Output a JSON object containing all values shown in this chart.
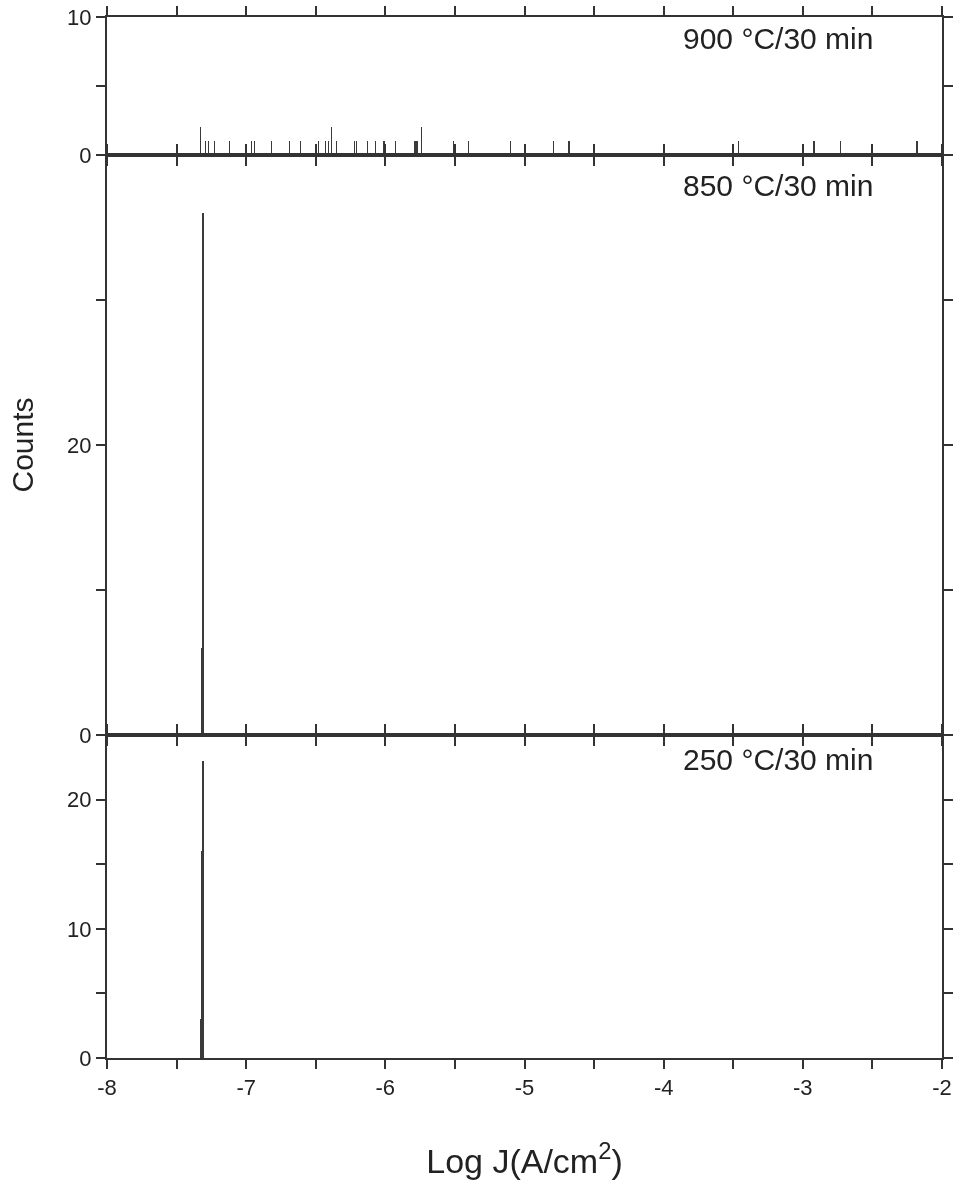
{
  "chart_data": [
    {
      "type": "bar",
      "annotations": [
        "900 °C/30 min"
      ],
      "color": "#3a3a3a",
      "tick_labels": "y",
      "x": [
        -7.325,
        -7.29,
        -7.27,
        -7.23,
        -7.12,
        -6.96,
        -6.94,
        -6.82,
        -6.69,
        -6.61,
        -6.48,
        -6.43,
        -6.41,
        -6.39,
        -6.35,
        -6.22,
        -6.21,
        -6.13,
        -6.07,
        -6.01,
        -5.93,
        -5.79,
        -5.78,
        -5.77,
        -5.74,
        -5.51,
        -5.4,
        -5.1,
        -4.79,
        -4.68,
        -3.46,
        -2.92,
        -2.73,
        -2.18
      ],
      "values": [
        2,
        1,
        1,
        1,
        1,
        1,
        1,
        1,
        1,
        1,
        1,
        1,
        1,
        2,
        1,
        1,
        1,
        1,
        1,
        1,
        1,
        1,
        1,
        1,
        2,
        1,
        1,
        1,
        1,
        1,
        1,
        1,
        1,
        1
      ],
      "xlim": [
        -8,
        -2
      ],
      "xticks": [
        -8,
        {
          "value": -7.5,
          "label": null
        },
        -7,
        {
          "value": -6.5,
          "label": null
        },
        -6,
        {
          "value": -5.5,
          "label": null
        },
        -5,
        {
          "value": -4.5,
          "label": null
        },
        -4,
        {
          "value": -3.5,
          "label": null
        },
        -3,
        {
          "value": -2.5,
          "label": null
        },
        -2
      ],
      "ylim": [
        0,
        10
      ],
      "yticks": [
        0,
        {
          "value": 5,
          "label": null
        },
        10
      ]
    },
    {
      "type": "bar",
      "annotations": [
        "850 °C/30 min"
      ],
      "ylabel": "Counts",
      "color": "#3a3a3a",
      "tick_labels": "y",
      "x": [
        -7.31,
        -7.318
      ],
      "values": [
        36,
        6
      ],
      "xlim": [
        -8,
        -2
      ],
      "xticks": [
        -8,
        {
          "value": -7.5,
          "label": null
        },
        -7,
        {
          "value": -6.5,
          "label": null
        },
        -6,
        {
          "value": -5.5,
          "label": null
        },
        -5,
        {
          "value": -4.5,
          "label": null
        },
        -4,
        {
          "value": -3.5,
          "label": null
        },
        -3,
        {
          "value": -2.5,
          "label": null
        },
        -2
      ],
      "ylim": [
        0,
        40
      ],
      "yticks": [
        0,
        {
          "value": 10,
          "label": null
        },
        20,
        {
          "value": 30,
          "label": null
        }
      ]
    },
    {
      "type": "bar",
      "annotations": [
        "250 °C/30 min"
      ],
      "xlabel": "Log J(A/cm$^{2}$)",
      "color": "#3a3a3a",
      "x": [
        -7.31,
        -7.318,
        -7.326
      ],
      "values": [
        23,
        16,
        3
      ],
      "xlim": [
        -8,
        -2
      ],
      "xticks": [
        -8,
        {
          "value": -7.5,
          "label": null
        },
        -7,
        {
          "value": -6.5,
          "label": null
        },
        -6,
        {
          "value": -5.5,
          "label": null
        },
        -5,
        {
          "value": -4.5,
          "label": null
        },
        -4,
        {
          "value": -3.5,
          "label": null
        },
        -3,
        {
          "value": -2.5,
          "label": null
        },
        -2
      ],
      "ylim": [
        0,
        25
      ],
      "yticks": [
        0,
        {
          "value": 5,
          "label": null
        },
        10,
        {
          "value": 15,
          "label": null
        },
        20
      ]
    }
  ]
}
